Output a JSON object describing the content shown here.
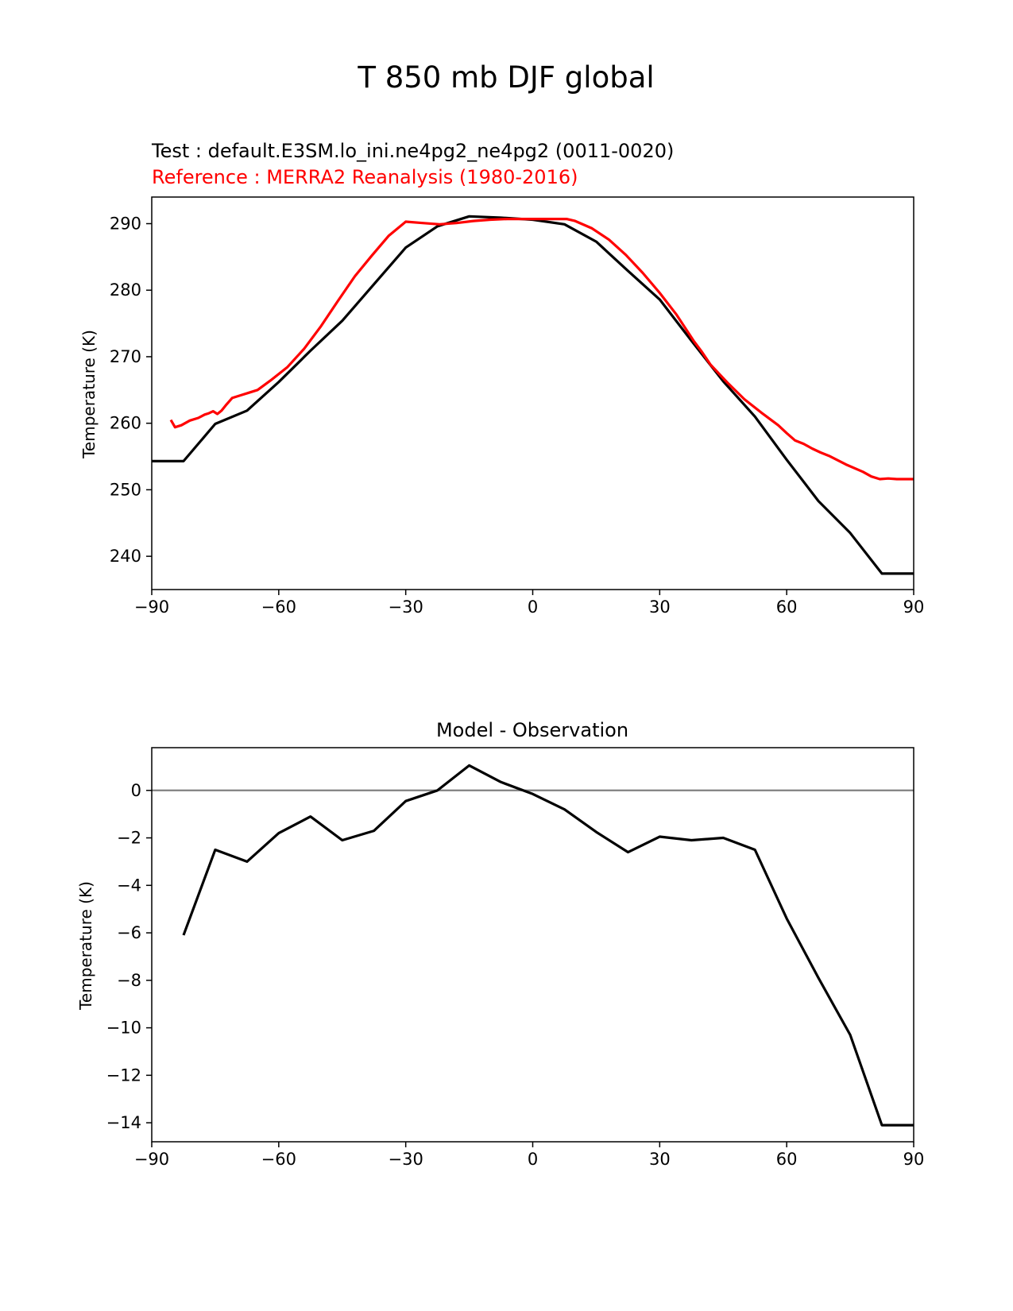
{
  "figure": {
    "suptitle": "T 850 mb DJF global"
  },
  "chart_data": [
    {
      "type": "line",
      "title_test": "Test : default.E3SM.lo_ini.ne4pg2_ne4pg2 (0011-0020)",
      "title_reference": "Reference : MERRA2 Reanalysis (1980-2016)",
      "xlabel": "",
      "ylabel": "Temperature (K)",
      "xlim": [
        -90,
        90
      ],
      "ylim": [
        235,
        294
      ],
      "xticks": [
        -90,
        -60,
        -30,
        0,
        30,
        60,
        90
      ],
      "xtick_labels": [
        "−90",
        "−60",
        "−30",
        "0",
        "30",
        "60",
        "90"
      ],
      "yticks": [
        240,
        250,
        260,
        270,
        280,
        290
      ],
      "ytick_labels": [
        "240",
        "250",
        "260",
        "270",
        "280",
        "290"
      ],
      "grid": false,
      "series": [
        {
          "color": "#000000",
          "x": [
            -90,
            -82.5,
            -75,
            -67.5,
            -60,
            -52.5,
            -45,
            -37.5,
            -30,
            -22.5,
            -15,
            -7.5,
            0,
            7.5,
            15,
            22.5,
            30,
            37.5,
            45,
            52.5,
            60,
            67.5,
            75,
            82.5,
            90
          ],
          "y": [
            254.3,
            254.3,
            259.9,
            261.9,
            266.2,
            270.9,
            275.4,
            280.9,
            286.4,
            289.6,
            291.1,
            290.9,
            290.6,
            289.9,
            287.3,
            282.9,
            278.6,
            272.4,
            266.3,
            261.0,
            254.5,
            248.3,
            243.5,
            237.4,
            237.4
          ]
        },
        {
          "color": "#ff0000",
          "x": [
            -85.5,
            -84.5,
            -83,
            -81,
            -79,
            -77.5,
            -76.5,
            -75.5,
            -74.5,
            -73.5,
            -72.5,
            -71,
            -69,
            -67,
            -65,
            -62,
            -58,
            -54,
            -50,
            -46,
            -42,
            -38,
            -34,
            -30,
            -26,
            -22,
            -18,
            -14,
            -10,
            -6,
            -2,
            2,
            6,
            8,
            10,
            14,
            18,
            22,
            26,
            30,
            34,
            38,
            40,
            42,
            46,
            50,
            54,
            58,
            60,
            62,
            64,
            66,
            68,
            70,
            74,
            78,
            80,
            82,
            84,
            86,
            90
          ],
          "y": [
            260.5,
            259.4,
            259.7,
            260.4,
            260.8,
            261.3,
            261.5,
            261.8,
            261.4,
            261.9,
            262.7,
            263.8,
            264.2,
            264.6,
            265.0,
            266.4,
            268.4,
            271.2,
            274.6,
            278.4,
            282.1,
            285.2,
            288.2,
            290.3,
            290.1,
            289.9,
            290.1,
            290.4,
            290.6,
            290.7,
            290.7,
            290.7,
            290.7,
            290.7,
            290.4,
            289.3,
            287.6,
            285.3,
            282.6,
            279.6,
            276.3,
            272.4,
            270.7,
            268.8,
            266.1,
            263.6,
            261.6,
            259.7,
            258.5,
            257.4,
            256.9,
            256.2,
            255.6,
            255.1,
            253.8,
            252.7,
            252.0,
            251.6,
            251.7,
            251.6,
            251.6
          ]
        }
      ]
    },
    {
      "type": "line",
      "title": "Model - Observation",
      "xlabel": "",
      "ylabel": "Temperature (K)",
      "xlim": [
        -90,
        90
      ],
      "ylim": [
        -14.8,
        1.8
      ],
      "xticks": [
        -90,
        -60,
        -30,
        0,
        30,
        60,
        90
      ],
      "xtick_labels": [
        "−90",
        "−60",
        "−30",
        "0",
        "30",
        "60",
        "90"
      ],
      "yticks": [
        -14,
        -12,
        -10,
        -8,
        -6,
        -4,
        -2,
        0
      ],
      "ytick_labels": [
        "−14",
        "−12",
        "−10",
        "−8",
        "−6",
        "−4",
        "−2",
        "0"
      ],
      "grid": false,
      "reference_line": {
        "y": 0,
        "color": "#808080"
      },
      "series": [
        {
          "color": "#000000",
          "x": [
            -82.5,
            -75,
            -67.5,
            -60,
            -52.5,
            -45,
            -37.5,
            -30,
            -22.5,
            -15,
            -7.5,
            0,
            7.5,
            15,
            22.5,
            30,
            37.5,
            45,
            52.5,
            60,
            67.5,
            75,
            82.5,
            90
          ],
          "y": [
            -6.1,
            -2.5,
            -3.0,
            -1.8,
            -1.1,
            -2.1,
            -1.7,
            -0.45,
            0.0,
            1.05,
            0.35,
            -0.15,
            -0.8,
            -1.75,
            -2.6,
            -1.95,
            -2.1,
            -2.0,
            -2.5,
            -5.4,
            -7.9,
            -10.3,
            -14.1,
            -14.1
          ]
        }
      ]
    }
  ]
}
